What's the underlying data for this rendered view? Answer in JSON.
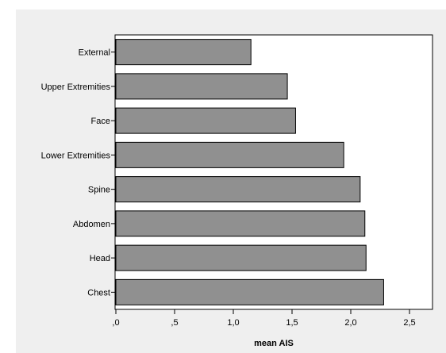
{
  "chart_data": {
    "type": "bar",
    "orientation": "horizontal",
    "categories": [
      "External",
      "Upper Extremities",
      "Face",
      "Lower Extremities",
      "Spine",
      "Abdomen",
      "Head",
      "Chest"
    ],
    "values": [
      1.15,
      1.46,
      1.53,
      1.94,
      2.08,
      2.12,
      2.13,
      2.28
    ],
    "xlabel": "mean AIS",
    "ylabel": "",
    "xlim": [
      0,
      2.65
    ],
    "xticks": [
      0,
      0.5,
      1.0,
      1.5,
      2.0,
      2.5
    ],
    "xtick_labels": [
      ",0",
      ",5",
      "1,0",
      "1,5",
      "2,0",
      "2,5"
    ],
    "grid": false,
    "legend": "none",
    "colors": {
      "bar_fill": "#909090",
      "bar_stroke": "#000000",
      "plot_background": "#ffffff",
      "outer_background": "#efefef"
    }
  }
}
